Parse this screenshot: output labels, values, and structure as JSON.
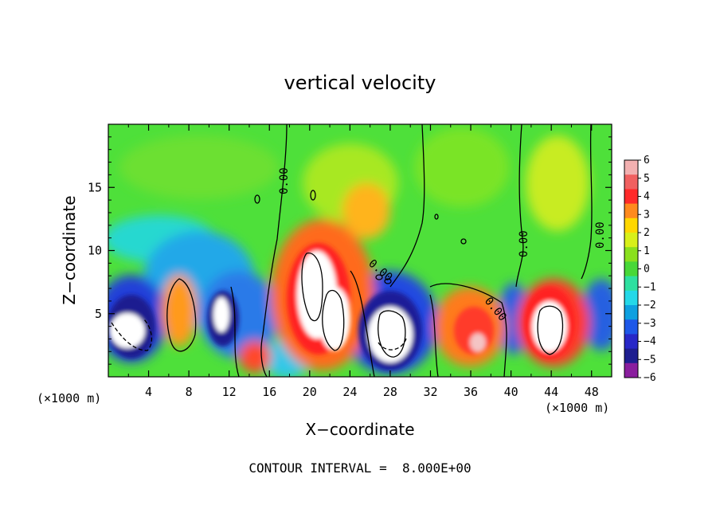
{
  "chart_data": {
    "type": "heatmap",
    "title": "vertical velocity",
    "xlabel": "X−coordinate",
    "ylabel": "Z−coordinate",
    "x_unit_label": "(×1000 m)",
    "x_unit_label_right": "(×1000 m)",
    "xlim": [
      0,
      50
    ],
    "ylim": [
      0,
      20
    ],
    "x_ticks": [
      "4",
      "8",
      "12",
      "16",
      "20",
      "24",
      "28",
      "32",
      "36",
      "40",
      "44",
      "48"
    ],
    "y_ticks": [
      "5",
      "10",
      "15"
    ],
    "colorbar": {
      "range": [
        -6,
        6
      ],
      "ticks": [
        "6",
        "5",
        "4",
        "3",
        "2",
        "1",
        "0",
        "−1",
        "−2",
        "−3",
        "−4",
        "−5",
        "−6"
      ],
      "colors": [
        "#f2b0b0",
        "#f06060",
        "#ff2a2a",
        "#ff8a1e",
        "#ffd700",
        "#d8f01a",
        "#8ae01e",
        "#48d838",
        "#2ee0a0",
        "#24d8e8",
        "#0ea0e0",
        "#1e58e8",
        "#2828c8",
        "#1e1e90",
        "#8a1e9e"
      ]
    },
    "contour_labels": [
      "0.00",
      "0.00",
      "0.00",
      "0.00",
      "0.00"
    ],
    "contour_interval_label": "CONTOUR INTERVAL =  8.000E+00"
  }
}
